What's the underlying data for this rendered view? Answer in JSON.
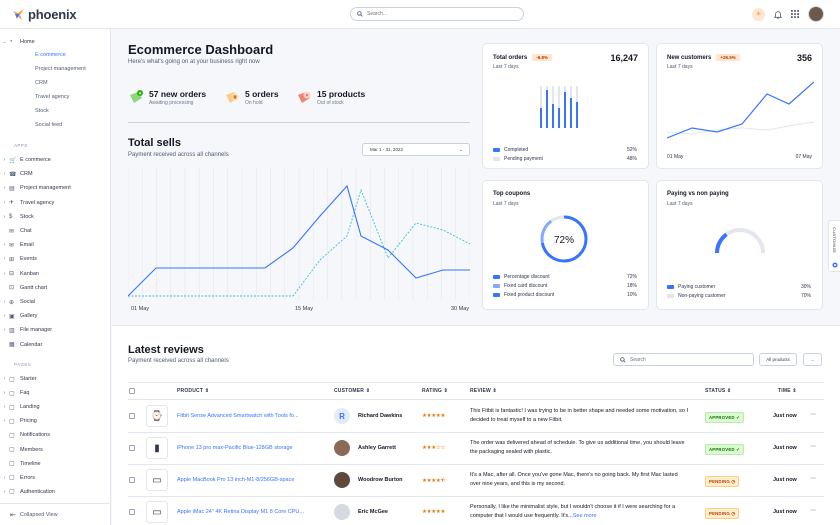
{
  "app": {
    "logo_text": "phoenix",
    "search_placeholder": "Search..."
  },
  "sidebar": {
    "home": "Home",
    "home_sub": [
      {
        "label": "E commerce",
        "active": true
      },
      {
        "label": "Project management"
      },
      {
        "label": "CRM"
      },
      {
        "label": "Travel agency"
      },
      {
        "label": "Stock"
      },
      {
        "label": "Social feed"
      }
    ],
    "apps_label": "APPS",
    "apps": [
      "E commerce",
      "CRM",
      "Project management",
      "Travel agency",
      "Stock",
      "Chat",
      "Email",
      "Events",
      "Kanban",
      "Gantt chart",
      "Social",
      "Gallery",
      "File manager",
      "Calendar"
    ],
    "pages_label": "PAGES",
    "pages": [
      "Starter",
      "Faq",
      "Landing",
      "Pricing",
      "Notifications",
      "Members",
      "Timeline",
      "Errors",
      "Authentication"
    ],
    "collapse": "Collapsed View"
  },
  "dashboard": {
    "title": "Ecommerce Dashboard",
    "subtitle": "Here's what's going on at your business right now",
    "stats": [
      {
        "big": "57 new orders",
        "small": "Awaiting processing"
      },
      {
        "big": "5 orders",
        "small": "On hold"
      },
      {
        "big": "15 products",
        "small": "Out of stock"
      }
    ]
  },
  "total_sells": {
    "title": "Total sells",
    "subtitle": "Payment received across all channels",
    "date_range": "Mar 1 - 31, 2022",
    "x_labels": [
      "01 May",
      "15 May",
      "30 May"
    ]
  },
  "total_orders": {
    "title": "Total orders",
    "badge": "-6.8%",
    "sub": "Last 7 days",
    "value": "16,247",
    "legend": [
      {
        "label": "Completed",
        "value": "52%"
      },
      {
        "label": "Pending payment",
        "value": "48%"
      }
    ]
  },
  "new_customers": {
    "title": "New customers",
    "badge": "+26.5%",
    "sub": "Last 7 days",
    "value": "356",
    "x_labels": [
      "01 May",
      "07 May"
    ]
  },
  "top_coupons": {
    "title": "Top coupons",
    "sub": "Last 7 days",
    "center": "72%",
    "legend": [
      {
        "label": "Percentage discount",
        "value": "72%"
      },
      {
        "label": "Fixed card discount",
        "value": "18%"
      },
      {
        "label": "Fixed product discount",
        "value": "10%"
      }
    ]
  },
  "paying": {
    "title": "Paying vs non paying",
    "sub": "Last 7 days",
    "legend": [
      {
        "label": "Paying customer",
        "value": "30%"
      },
      {
        "label": "Non-paying customer",
        "value": "70%"
      }
    ]
  },
  "customize": "CUSTOMIZE",
  "reviews": {
    "title": "Latest reviews",
    "subtitle": "Payment received across all channels",
    "search_placeholder": "Search",
    "all_products": "All products",
    "more": "...",
    "headers": [
      "PRODUCT",
      "CUSTOMER",
      "RATING",
      "REVIEW",
      "STATUS",
      "TIME"
    ],
    "rows": [
      {
        "product": "Fitbit Sense Advanced Smartwatch with Tools fo...",
        "customer": "Richard Dawkins",
        "initial": "R",
        "rating": 5,
        "review": "This Fitbit is fantastic! I was trying to be in better shape and needed some motivation, so I decided to treat myself to a new Fitbit.",
        "review_more": "",
        "status": "APPROVED",
        "time": "Just now"
      },
      {
        "product": "iPhone 13 pro max-Pacific Blue-128GB storage",
        "customer": "Ashley Garrett",
        "initial": "",
        "rating": 3,
        "review": "The order was delivered ahead of schedule. To give us additional time, you should leave the packaging sealed with plastic.",
        "review_more": "",
        "status": "APPROVED",
        "time": "Just now"
      },
      {
        "product": "Apple MacBook Pro 13 inch-M1-8/256GB-space",
        "customer": "Woodrow Burton",
        "initial": "",
        "rating": 4.5,
        "review": "It's a Mac, after all. Once you've gone Mac, there's no going back. My first Mac lasted over nine years, and this is my second.",
        "review_more": "",
        "status": "PENDING",
        "time": "Just now"
      },
      {
        "product": "Apple iMac 24\" 4K Retina Display M1 8 Core CPU...",
        "customer": "Eric McGee",
        "initial": "",
        "rating": 5,
        "review": "Personally, I like the minimalist style, but I wouldn't choose it if I were searching for a computer that I would use frequently. It's...",
        "review_more": "See more",
        "status": "PENDING",
        "time": "Just now"
      }
    ]
  },
  "colors": {
    "primary": "#3874ff",
    "light_blue": "#85a9ff",
    "teal_dash": "#3fbfd5",
    "orange": "#f29c49"
  }
}
